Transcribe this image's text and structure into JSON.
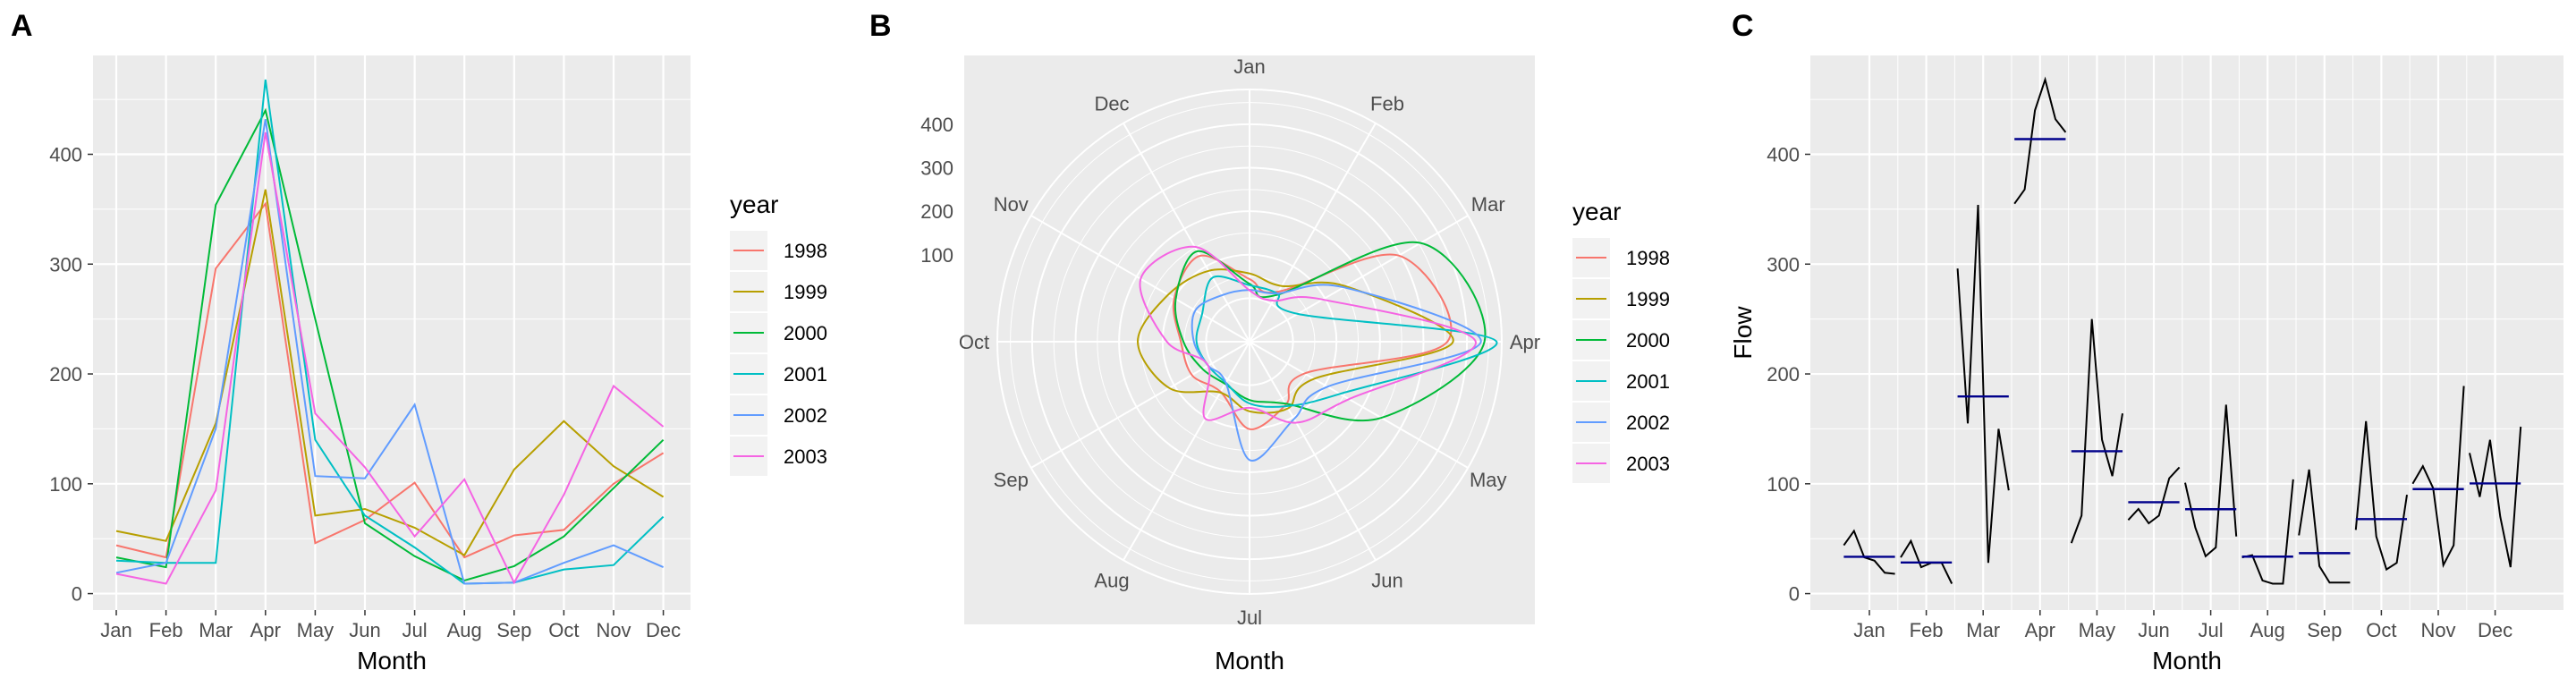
{
  "panels": {
    "A": {
      "tag": "A"
    },
    "B": {
      "tag": "B"
    },
    "C": {
      "tag": "C"
    }
  },
  "colors": {
    "panel_bg": "#ebebeb",
    "grid": "#ffffff",
    "axis_text": "#4d4d4d",
    "title_text": "#000000",
    "series": [
      "#F8766D",
      "#B79F00",
      "#00BA38",
      "#00BFC4",
      "#619CFF",
      "#F564E3"
    ],
    "panel_c_line": "#000000",
    "panel_c_mean": "#00008B"
  },
  "chart_data": [
    {
      "id": "A",
      "type": "line",
      "title": "",
      "xlabel": "Month",
      "ylabel": "",
      "categories": [
        "Jan",
        "Feb",
        "Mar",
        "Apr",
        "May",
        "Jun",
        "Jul",
        "Aug",
        "Sep",
        "Oct",
        "Nov",
        "Dec"
      ],
      "ylim": [
        -15,
        490
      ],
      "yticks": [
        0,
        100,
        200,
        300,
        400
      ],
      "grid": true,
      "legend": {
        "title": "year",
        "position": "right"
      },
      "series": [
        {
          "name": "1998",
          "values": [
            44,
            33,
            296,
            355,
            46,
            67,
            101,
            33,
            53,
            58,
            100,
            128
          ]
        },
        {
          "name": "1999",
          "values": [
            57,
            48,
            155,
            368,
            71,
            77,
            60,
            35,
            113,
            157,
            116,
            88
          ]
        },
        {
          "name": "2000",
          "values": [
            33,
            24,
            354,
            440,
            250,
            64,
            34,
            12,
            25,
            52,
            96,
            140
          ]
        },
        {
          "name": "2001",
          "values": [
            30,
            28,
            28,
            468,
            140,
            71,
            42,
            9,
            10,
            22,
            26,
            70
          ]
        },
        {
          "name": "2002",
          "values": [
            19,
            28,
            150,
            432,
            107,
            105,
            172,
            9,
            10,
            28,
            44,
            24
          ]
        },
        {
          "name": "2003",
          "values": [
            18,
            9,
            94,
            420,
            164,
            115,
            52,
            104,
            10,
            90,
            189,
            152
          ]
        }
      ]
    },
    {
      "id": "B",
      "type": "line",
      "subtype": "polar",
      "title": "",
      "xlabel": "Month",
      "ylabel": "",
      "categories": [
        "Jan",
        "Feb",
        "Mar",
        "Apr",
        "May",
        "Jun",
        "Jul",
        "Aug",
        "Sep",
        "Oct",
        "Nov",
        "Dec"
      ],
      "rlim": [
        -100,
        480
      ],
      "rticks": [
        100,
        200,
        300,
        400
      ],
      "grid": true,
      "legend": {
        "title": "year",
        "position": "right"
      },
      "series_ref": "A"
    },
    {
      "id": "C",
      "type": "line",
      "subtype": "month-subseries",
      "title": "",
      "xlabel": "Month",
      "ylabel": "Flow",
      "categories": [
        "Jan",
        "Feb",
        "Mar",
        "Apr",
        "May",
        "Jun",
        "Jul",
        "Aug",
        "Sep",
        "Oct",
        "Nov",
        "Dec"
      ],
      "ylim": [
        -15,
        490
      ],
      "yticks": [
        0,
        100,
        200,
        300,
        400
      ],
      "grid": true,
      "series_ref": "A",
      "mean_line": true
    }
  ]
}
